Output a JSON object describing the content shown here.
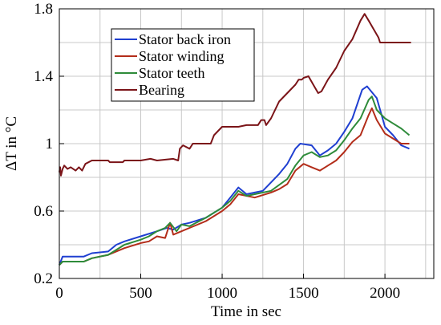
{
  "chart_data": {
    "type": "line",
    "xlabel": "Time in sec",
    "ylabel": "ΔT in °C",
    "xlim": [
      0,
      2300
    ],
    "ylim": [
      0.2,
      1.8
    ],
    "xticks": [
      0,
      500,
      1000,
      1500,
      2000
    ],
    "xtick_labels": [
      "0",
      "500",
      "1000",
      "1500",
      "2000"
    ],
    "yticks": [
      0.2,
      0.6,
      1.0,
      1.4,
      1.8
    ],
    "ytick_labels": [
      "0.2",
      "0.6",
      "1",
      "1.4",
      "1.8"
    ],
    "x_minor_gridlines": [
      250,
      750,
      1250,
      1750,
      2250
    ],
    "y_minor_gridlines": [
      0.4,
      0.8,
      1.2,
      1.6
    ],
    "grid": true,
    "legend_position": "top-left",
    "series": [
      {
        "name": "Stator back iron",
        "color": "#1f3fd1",
        "points": [
          [
            0,
            0.28
          ],
          [
            20,
            0.33
          ],
          [
            100,
            0.33
          ],
          [
            150,
            0.33
          ],
          [
            200,
            0.35
          ],
          [
            300,
            0.36
          ],
          [
            350,
            0.4
          ],
          [
            400,
            0.42
          ],
          [
            500,
            0.45
          ],
          [
            600,
            0.48
          ],
          [
            660,
            0.5
          ],
          [
            700,
            0.49
          ],
          [
            750,
            0.52
          ],
          [
            800,
            0.53
          ],
          [
            900,
            0.56
          ],
          [
            1000,
            0.62
          ],
          [
            1050,
            0.68
          ],
          [
            1100,
            0.74
          ],
          [
            1150,
            0.7
          ],
          [
            1200,
            0.71
          ],
          [
            1250,
            0.72
          ],
          [
            1300,
            0.77
          ],
          [
            1350,
            0.82
          ],
          [
            1400,
            0.88
          ],
          [
            1450,
            0.97
          ],
          [
            1480,
            1.0
          ],
          [
            1550,
            0.99
          ],
          [
            1600,
            0.93
          ],
          [
            1650,
            0.96
          ],
          [
            1700,
            1.0
          ],
          [
            1750,
            1.07
          ],
          [
            1800,
            1.15
          ],
          [
            1860,
            1.32
          ],
          [
            1890,
            1.34
          ],
          [
            1950,
            1.27
          ],
          [
            2000,
            1.1
          ],
          [
            2050,
            1.05
          ],
          [
            2100,
            0.99
          ],
          [
            2150,
            0.97
          ]
        ]
      },
      {
        "name": "Stator winding",
        "color": "#b32d1a",
        "points": [
          [
            0,
            0.28
          ],
          [
            20,
            0.3
          ],
          [
            150,
            0.3
          ],
          [
            200,
            0.32
          ],
          [
            300,
            0.34
          ],
          [
            400,
            0.38
          ],
          [
            500,
            0.41
          ],
          [
            550,
            0.42
          ],
          [
            600,
            0.45
          ],
          [
            650,
            0.44
          ],
          [
            680,
            0.53
          ],
          [
            700,
            0.46
          ],
          [
            750,
            0.48
          ],
          [
            800,
            0.5
          ],
          [
            900,
            0.54
          ],
          [
            1000,
            0.6
          ],
          [
            1050,
            0.64
          ],
          [
            1100,
            0.7
          ],
          [
            1200,
            0.68
          ],
          [
            1300,
            0.71
          ],
          [
            1350,
            0.73
          ],
          [
            1400,
            0.76
          ],
          [
            1450,
            0.84
          ],
          [
            1500,
            0.88
          ],
          [
            1550,
            0.86
          ],
          [
            1600,
            0.84
          ],
          [
            1650,
            0.87
          ],
          [
            1700,
            0.9
          ],
          [
            1750,
            0.95
          ],
          [
            1800,
            1.01
          ],
          [
            1850,
            1.05
          ],
          [
            1900,
            1.17
          ],
          [
            1920,
            1.21
          ],
          [
            1950,
            1.14
          ],
          [
            2000,
            1.06
          ],
          [
            2100,
            1.0
          ],
          [
            2150,
            1.0
          ]
        ]
      },
      {
        "name": "Stator teeth",
        "color": "#2e8b3a",
        "points": [
          [
            0,
            0.28
          ],
          [
            20,
            0.3
          ],
          [
            150,
            0.3
          ],
          [
            200,
            0.32
          ],
          [
            300,
            0.34
          ],
          [
            400,
            0.4
          ],
          [
            500,
            0.43
          ],
          [
            550,
            0.45
          ],
          [
            600,
            0.48
          ],
          [
            650,
            0.5
          ],
          [
            680,
            0.53
          ],
          [
            720,
            0.48
          ],
          [
            750,
            0.52
          ],
          [
            800,
            0.51
          ],
          [
            900,
            0.56
          ],
          [
            1000,
            0.62
          ],
          [
            1050,
            0.66
          ],
          [
            1100,
            0.72
          ],
          [
            1150,
            0.69
          ],
          [
            1200,
            0.7
          ],
          [
            1300,
            0.72
          ],
          [
            1400,
            0.79
          ],
          [
            1450,
            0.87
          ],
          [
            1500,
            0.93
          ],
          [
            1550,
            0.95
          ],
          [
            1600,
            0.92
          ],
          [
            1650,
            0.93
          ],
          [
            1700,
            0.96
          ],
          [
            1750,
            1.02
          ],
          [
            1800,
            1.09
          ],
          [
            1850,
            1.15
          ],
          [
            1900,
            1.26
          ],
          [
            1920,
            1.28
          ],
          [
            1950,
            1.2
          ],
          [
            2000,
            1.15
          ],
          [
            2050,
            1.12
          ],
          [
            2100,
            1.09
          ],
          [
            2150,
            1.05
          ]
        ]
      },
      {
        "name": "Bearing",
        "color": "#7b1418",
        "points": [
          [
            0,
            0.83
          ],
          [
            5,
            0.86
          ],
          [
            10,
            0.81
          ],
          [
            20,
            0.85
          ],
          [
            30,
            0.87
          ],
          [
            50,
            0.85
          ],
          [
            70,
            0.86
          ],
          [
            100,
            0.84
          ],
          [
            120,
            0.86
          ],
          [
            140,
            0.84
          ],
          [
            160,
            0.88
          ],
          [
            200,
            0.9
          ],
          [
            300,
            0.9
          ],
          [
            310,
            0.89
          ],
          [
            390,
            0.89
          ],
          [
            400,
            0.9
          ],
          [
            500,
            0.9
          ],
          [
            560,
            0.91
          ],
          [
            600,
            0.9
          ],
          [
            700,
            0.91
          ],
          [
            730,
            0.9
          ],
          [
            740,
            0.97
          ],
          [
            760,
            0.99
          ],
          [
            800,
            0.97
          ],
          [
            820,
            1.0
          ],
          [
            930,
            1.0
          ],
          [
            950,
            1.05
          ],
          [
            1000,
            1.1
          ],
          [
            1100,
            1.1
          ],
          [
            1150,
            1.11
          ],
          [
            1220,
            1.11
          ],
          [
            1240,
            1.14
          ],
          [
            1260,
            1.14
          ],
          [
            1270,
            1.11
          ],
          [
            1300,
            1.15
          ],
          [
            1350,
            1.25
          ],
          [
            1400,
            1.3
          ],
          [
            1450,
            1.35
          ],
          [
            1470,
            1.38
          ],
          [
            1490,
            1.38
          ],
          [
            1500,
            1.39
          ],
          [
            1530,
            1.4
          ],
          [
            1560,
            1.35
          ],
          [
            1590,
            1.3
          ],
          [
            1610,
            1.31
          ],
          [
            1650,
            1.38
          ],
          [
            1700,
            1.45
          ],
          [
            1750,
            1.55
          ],
          [
            1800,
            1.62
          ],
          [
            1850,
            1.73
          ],
          [
            1875,
            1.77
          ],
          [
            1900,
            1.73
          ],
          [
            1930,
            1.68
          ],
          [
            1960,
            1.63
          ],
          [
            1970,
            1.6
          ],
          [
            2000,
            1.6
          ],
          [
            2160,
            1.6
          ]
        ]
      }
    ]
  }
}
